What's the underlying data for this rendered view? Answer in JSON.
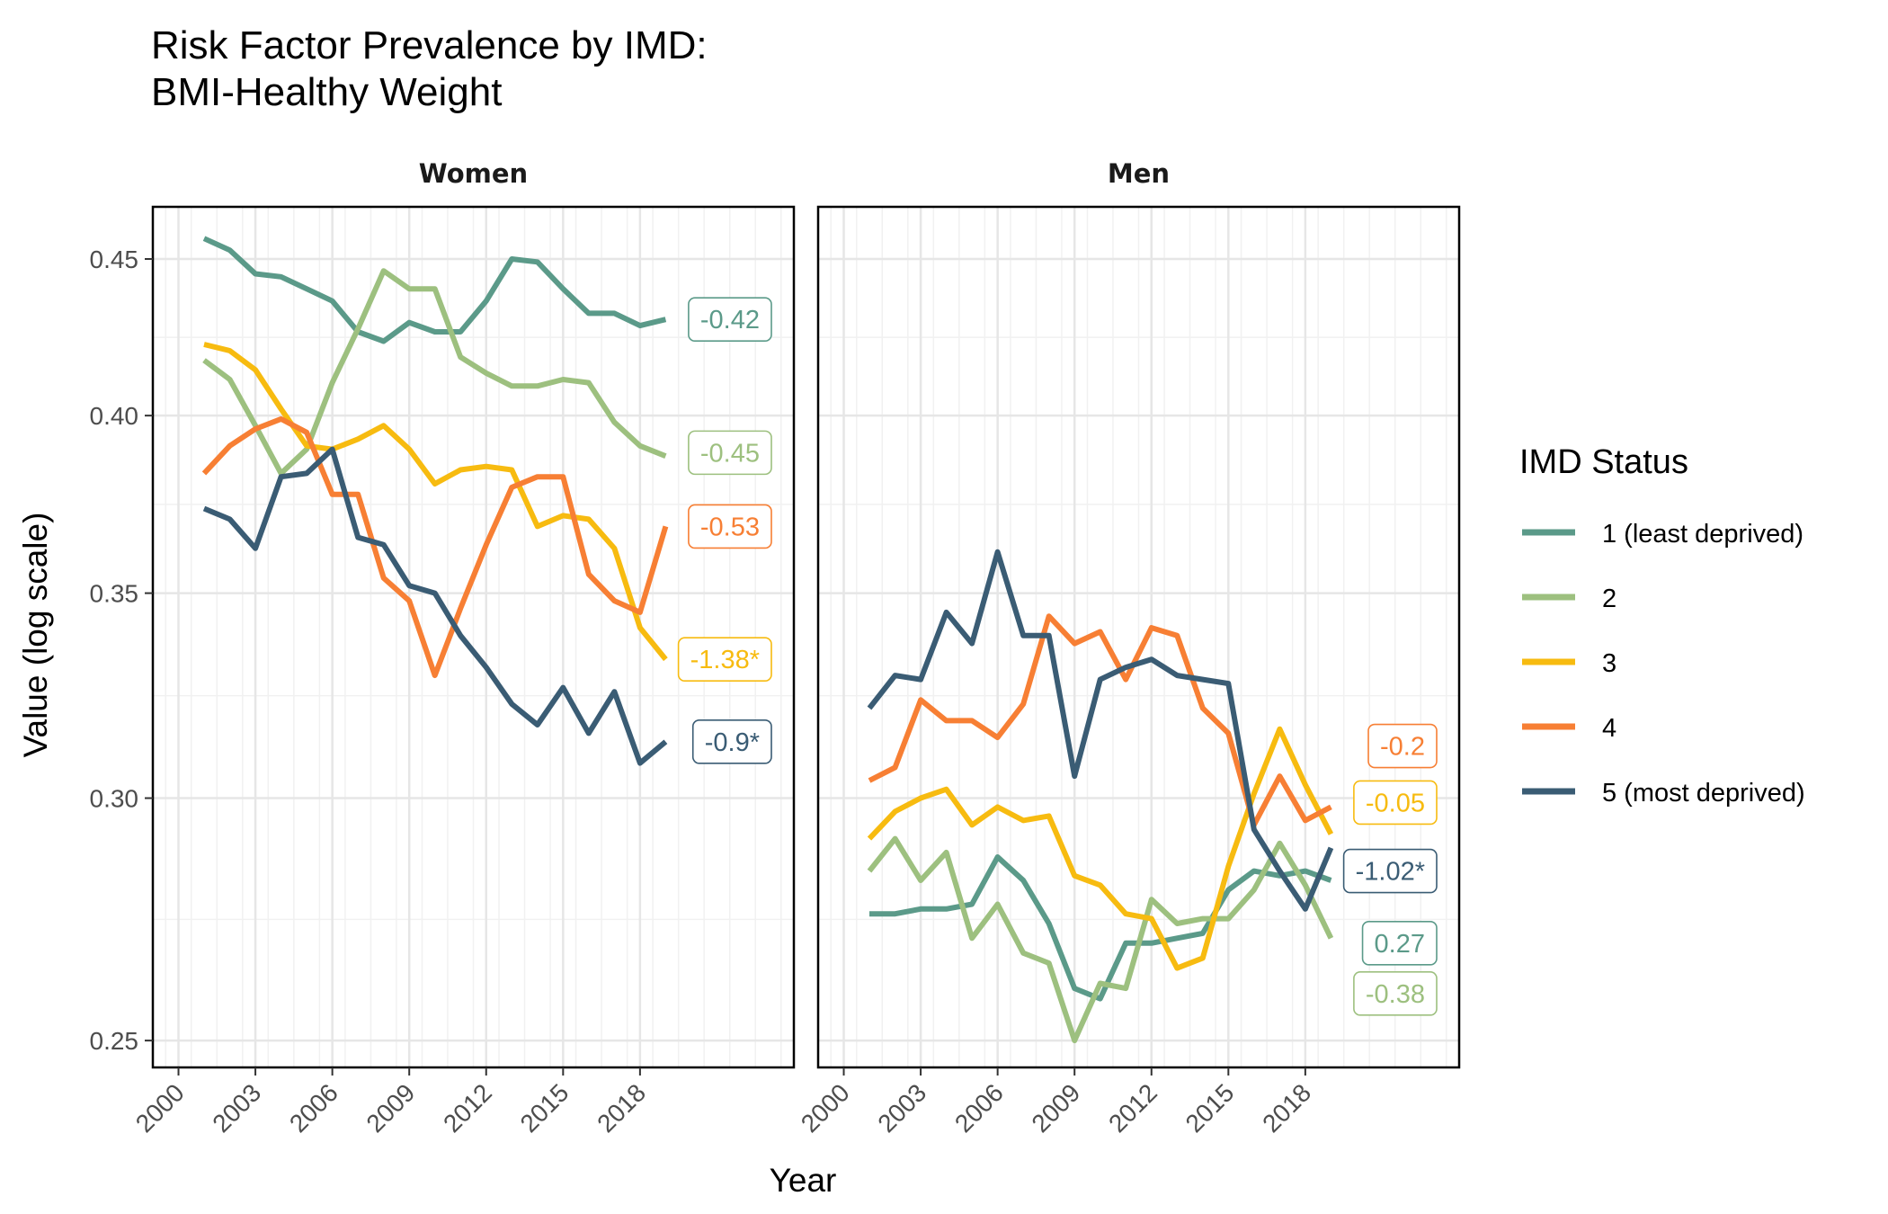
{
  "chart_data": {
    "type": "line",
    "title_lines": [
      "Risk Factor Prevalence by IMD:",
      "BMI-Healthy Weight"
    ],
    "xlabel": "Year",
    "ylabel": "Value (log scale)",
    "y_scale": "log",
    "ylim": [
      0.245,
      0.468
    ],
    "xlim": [
      1999,
      2024
    ],
    "y_ticks": [
      0.25,
      0.3,
      0.35,
      0.4,
      0.45
    ],
    "y_tick_labels": [
      "0.25",
      "0.30",
      "0.35",
      "0.40",
      "0.45"
    ],
    "x_ticks": [
      2000,
      2003,
      2006,
      2009,
      2012,
      2015,
      2018
    ],
    "x_tick_labels": [
      "2000",
      "2003",
      "2006",
      "2009",
      "2012",
      "2015",
      "2018"
    ],
    "grid": true,
    "legend": {
      "title": "IMD Status",
      "position": "right",
      "entries": [
        "1 (least deprived)",
        "2",
        "3",
        "4",
        "5 (most deprived)"
      ]
    },
    "colors": [
      "#5b9a89",
      "#9dc07f",
      "#f7bb10",
      "#f77f34",
      "#3a5c74"
    ],
    "x": [
      2001,
      2002,
      2003,
      2004,
      2005,
      2006,
      2007,
      2008,
      2009,
      2010,
      2011,
      2012,
      2013,
      2014,
      2015,
      2016,
      2017,
      2018,
      2019
    ],
    "panels": [
      {
        "name": "Women",
        "series": [
          {
            "name": "1 (least deprived)",
            "values": [
              0.457,
              0.453,
              0.445,
              0.444,
              0.44,
              0.436,
              0.426,
              0.423,
              0.429,
              0.426,
              0.426,
              0.436,
              0.45,
              0.449,
              0.44,
              0.432,
              0.432,
              0.428,
              0.43
            ],
            "end_label": "-0.42",
            "label_value": 0.43
          },
          {
            "name": "2",
            "values": [
              0.417,
              0.411,
              0.397,
              0.383,
              0.39,
              0.41,
              0.427,
              0.446,
              0.44,
              0.44,
              0.418,
              0.413,
              0.409,
              0.409,
              0.411,
              0.41,
              0.398,
              0.391,
              0.388
            ],
            "end_label": "-0.45",
            "label_value": 0.389
          },
          {
            "name": "3",
            "values": [
              0.422,
              0.42,
              0.414,
              0.402,
              0.391,
              0.39,
              0.393,
              0.397,
              0.39,
              0.38,
              0.384,
              0.385,
              0.384,
              0.368,
              0.371,
              0.37,
              0.362,
              0.341,
              0.333
            ],
            "end_label": "-1.38*",
            "label_value": 0.333
          },
          {
            "name": "4",
            "values": [
              0.383,
              0.391,
              0.396,
              0.399,
              0.395,
              0.377,
              0.377,
              0.354,
              0.348,
              0.329,
              0.346,
              0.363,
              0.379,
              0.382,
              0.382,
              0.355,
              0.348,
              0.345,
              0.368
            ],
            "end_label": "-0.53",
            "label_value": 0.368
          },
          {
            "name": "5 (most deprived)",
            "values": [
              0.373,
              0.37,
              0.362,
              0.382,
              0.383,
              0.39,
              0.365,
              0.363,
              0.352,
              0.35,
              0.339,
              0.331,
              0.322,
              0.317,
              0.326,
              0.315,
              0.325,
              0.308,
              0.313
            ],
            "end_label": "-0.9*",
            "label_value": 0.313
          }
        ]
      },
      {
        "name": "Men",
        "series": [
          {
            "name": "1 (least deprived)",
            "values": [
              0.275,
              0.275,
              0.276,
              0.276,
              0.277,
              0.287,
              0.282,
              0.273,
              0.26,
              0.258,
              0.269,
              0.269,
              0.27,
              0.271,
              0.28,
              0.284,
              0.283,
              0.284,
              0.282
            ],
            "end_label": "0.27",
            "label_value": 0.269
          },
          {
            "name": "2",
            "values": [
              0.284,
              0.291,
              0.282,
              0.288,
              0.27,
              0.277,
              0.267,
              0.265,
              0.25,
              0.261,
              0.26,
              0.278,
              0.273,
              0.274,
              0.274,
              0.28,
              0.29,
              0.281,
              0.27
            ],
            "end_label": "-0.38",
            "label_value": 0.259
          },
          {
            "name": "3",
            "values": [
              0.291,
              0.297,
              0.3,
              0.302,
              0.294,
              0.298,
              0.295,
              0.296,
              0.283,
              0.281,
              0.275,
              0.274,
              0.264,
              0.266,
              0.285,
              0.301,
              0.316,
              0.303,
              0.292
            ],
            "end_label": "-0.05",
            "label_value": 0.299
          },
          {
            "name": "4",
            "values": [
              0.304,
              0.307,
              0.323,
              0.318,
              0.318,
              0.314,
              0.322,
              0.344,
              0.337,
              0.34,
              0.328,
              0.341,
              0.339,
              0.321,
              0.315,
              0.294,
              0.305,
              0.295,
              0.298
            ],
            "end_label": "-0.2",
            "label_value": 0.312
          },
          {
            "name": "5 (most deprived)",
            "values": [
              0.321,
              0.329,
              0.328,
              0.345,
              0.337,
              0.361,
              0.339,
              0.339,
              0.305,
              0.328,
              0.331,
              0.333,
              0.329,
              0.328,
              0.327,
              0.293,
              0.284,
              0.276,
              0.289
            ],
            "end_label": "-1.02*",
            "label_value": 0.284
          }
        ]
      }
    ]
  }
}
